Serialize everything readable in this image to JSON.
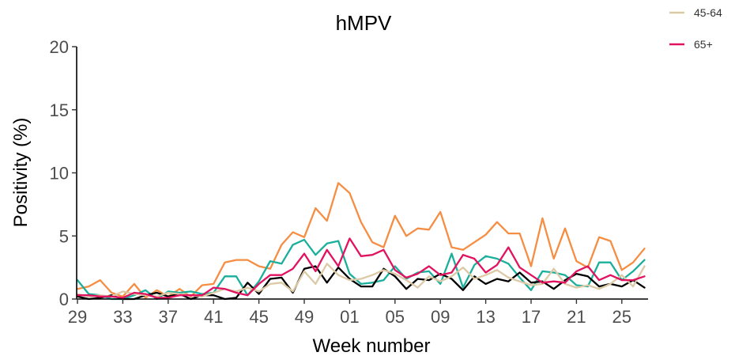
{
  "chart_data": {
    "type": "line",
    "title": "hMPV",
    "xlabel": "Week number",
    "ylabel": "Positivity (%)",
    "ylim": [
      0,
      20
    ],
    "yticks": [
      "0",
      "5",
      "10",
      "15",
      "20"
    ],
    "xticks": [
      "29",
      "33",
      "37",
      "41",
      "45",
      "49",
      "01",
      "05",
      "09",
      "13",
      "17",
      "21",
      "25"
    ],
    "x": [
      "29",
      "30",
      "31",
      "32",
      "33",
      "34",
      "35",
      "36",
      "37",
      "38",
      "39",
      "40",
      "41",
      "42",
      "43",
      "44",
      "45",
      "46",
      "47",
      "48",
      "49",
      "50",
      "51",
      "52",
      "01",
      "02",
      "03",
      "04",
      "05",
      "06",
      "07",
      "08",
      "09",
      "10",
      "11",
      "12",
      "13",
      "14",
      "15",
      "16",
      "17",
      "18",
      "19",
      "20",
      "21",
      "22",
      "23",
      "24",
      "25",
      "26",
      "27"
    ],
    "legend_placement": "top-right",
    "grid": false,
    "series": [
      {
        "name": "",
        "color": "#f58d42",
        "values": [
          0.8,
          1.0,
          1.5,
          0.5,
          0.2,
          1.2,
          0.1,
          0.7,
          0.2,
          0.8,
          0.2,
          1.1,
          1.2,
          2.9,
          3.1,
          3.1,
          2.6,
          2.4,
          4.3,
          5.3,
          4.9,
          7.2,
          6.2,
          9.2,
          8.4,
          6.1,
          4.5,
          4.1,
          6.6,
          5.0,
          5.6,
          5.5,
          6.9,
          4.1,
          3.9,
          4.5,
          5.1,
          6.1,
          5.2,
          5.2,
          2.6,
          6.4,
          3.2,
          5.6,
          3.0,
          2.5,
          4.9,
          4.6,
          2.3,
          2.9,
          4.0
        ]
      },
      {
        "name": "",
        "color": "#1aaf9c",
        "values": [
          1.5,
          0.4,
          0.3,
          0.0,
          0.0,
          0.3,
          0.7,
          0.0,
          0.6,
          0.5,
          0.6,
          0.4,
          0.5,
          1.8,
          1.8,
          0.3,
          1.4,
          3.0,
          2.8,
          4.3,
          4.7,
          3.5,
          4.4,
          4.6,
          2.0,
          1.2,
          1.3,
          1.5,
          2.6,
          1.6,
          2.1,
          2.2,
          1.2,
          3.6,
          0.9,
          2.7,
          3.4,
          3.2,
          2.8,
          1.7,
          0.7,
          2.2,
          2.1,
          1.9,
          1.1,
          1.0,
          2.9,
          2.9,
          1.5,
          2.2,
          3.1
        ]
      },
      {
        "name": "",
        "color": "#000000",
        "values": [
          0.2,
          0.0,
          0.1,
          0.3,
          0.0,
          0.0,
          0.3,
          0.5,
          0.2,
          0.4,
          0.0,
          0.3,
          0.3,
          0.0,
          0.1,
          1.3,
          0.4,
          1.6,
          1.7,
          0.5,
          2.4,
          2.6,
          1.3,
          2.5,
          1.6,
          1.0,
          1.0,
          2.4,
          1.8,
          0.8,
          1.6,
          1.5,
          2.0,
          1.6,
          0.7,
          1.8,
          1.2,
          1.6,
          1.4,
          2.1,
          1.3,
          1.4,
          0.8,
          1.5,
          2.0,
          1.8,
          1.0,
          1.2,
          1.0,
          1.5,
          0.9
        ]
      },
      {
        "name": "45-64",
        "color": "#dcc9a6",
        "values": [
          0.4,
          0.2,
          0.3,
          0.2,
          0.6,
          0.4,
          0.3,
          0.2,
          0.5,
          0.4,
          0.3,
          0.2,
          0.5,
          0.8,
          0.6,
          0.9,
          0.6,
          1.2,
          1.3,
          0.6,
          2.2,
          1.2,
          2.8,
          1.9,
          1.5,
          1.6,
          1.9,
          2.3,
          2.0,
          1.5,
          0.9,
          1.8,
          1.4,
          1.8,
          2.5,
          1.6,
          1.9,
          2.3,
          1.7,
          1.4,
          1.1,
          1.2,
          2.4,
          1.2,
          0.9,
          1.1,
          0.8,
          1.2,
          1.9,
          1.0,
          2.6
        ]
      },
      {
        "name": "65+",
        "color": "#e1125f",
        "values": [
          0.3,
          0.3,
          0.2,
          0.2,
          0.1,
          0.5,
          0.4,
          0.1,
          0.1,
          0.3,
          0.3,
          0.3,
          0.9,
          0.8,
          0.5,
          0.3,
          1.2,
          1.9,
          1.9,
          2.4,
          3.6,
          2.2,
          3.9,
          2.6,
          4.8,
          3.4,
          3.5,
          3.9,
          2.3,
          1.7,
          2.0,
          2.6,
          1.9,
          2.1,
          3.5,
          3.2,
          2.1,
          2.7,
          4.1,
          2.5,
          1.9,
          1.3,
          1.4,
          1.3,
          2.2,
          2.6,
          1.5,
          1.9,
          1.5,
          1.5,
          1.8
        ]
      }
    ]
  }
}
